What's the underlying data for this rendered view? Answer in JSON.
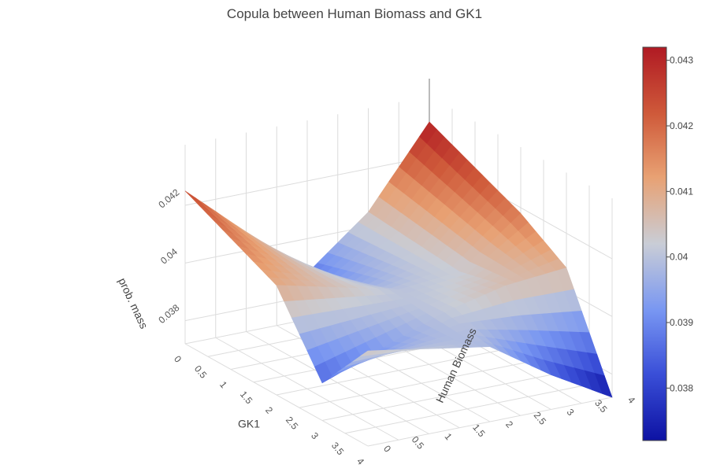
{
  "chart_data": {
    "type": "surface",
    "title": "Copula between Human Biomass and GK1",
    "xlabel": "GK1",
    "ylabel": "Human Biomass",
    "zlabel": "prob. mass",
    "x": [
      0,
      0.5,
      1,
      1.5,
      2,
      2.5,
      3,
      3.5,
      4
    ],
    "y": [
      0,
      0.5,
      1,
      1.5,
      2,
      2.5,
      3,
      3.5,
      4
    ],
    "x_ticks": [
      "0",
      "0.5",
      "1",
      "1.5",
      "2",
      "2.5",
      "3",
      "3.5",
      "4"
    ],
    "y_ticks": [
      "0",
      "0.5",
      "1",
      "1.5",
      "2",
      "2.5",
      "3",
      "3.5",
      "4"
    ],
    "z_ticks": [
      "0.038",
      "0.04",
      "0.042"
    ],
    "z_tick_values": [
      0.038,
      0.04,
      0.042
    ],
    "zlim": [
      0.0372,
      0.0432
    ],
    "x_values_at_grid": [
      0,
      2,
      3,
      4
    ],
    "y_values_at_grid": [
      0,
      2,
      3,
      4
    ],
    "z": [
      [
        0.0425,
        0.0388,
        0.0405,
        0.0432
      ],
      [
        0.041,
        0.04,
        0.0402,
        0.0418
      ],
      [
        0.0385,
        0.0401,
        0.0406,
        0.0408
      ],
      [
        0.0405,
        0.0398,
        0.0384,
        0.0372
      ]
    ],
    "colorscale": [
      "#0d12a3",
      "#3a4fd8",
      "#7896f2",
      "#c9cdd6",
      "#e8a173",
      "#cf5a3a",
      "#b01a23"
    ],
    "colorbar": {
      "ticks": [
        "0.038",
        "0.039",
        "0.04",
        "0.041",
        "0.042",
        "0.043"
      ],
      "tick_values": [
        0.038,
        0.039,
        0.04,
        0.041,
        0.042,
        0.043
      ],
      "range": [
        0.0372,
        0.0432
      ]
    }
  }
}
